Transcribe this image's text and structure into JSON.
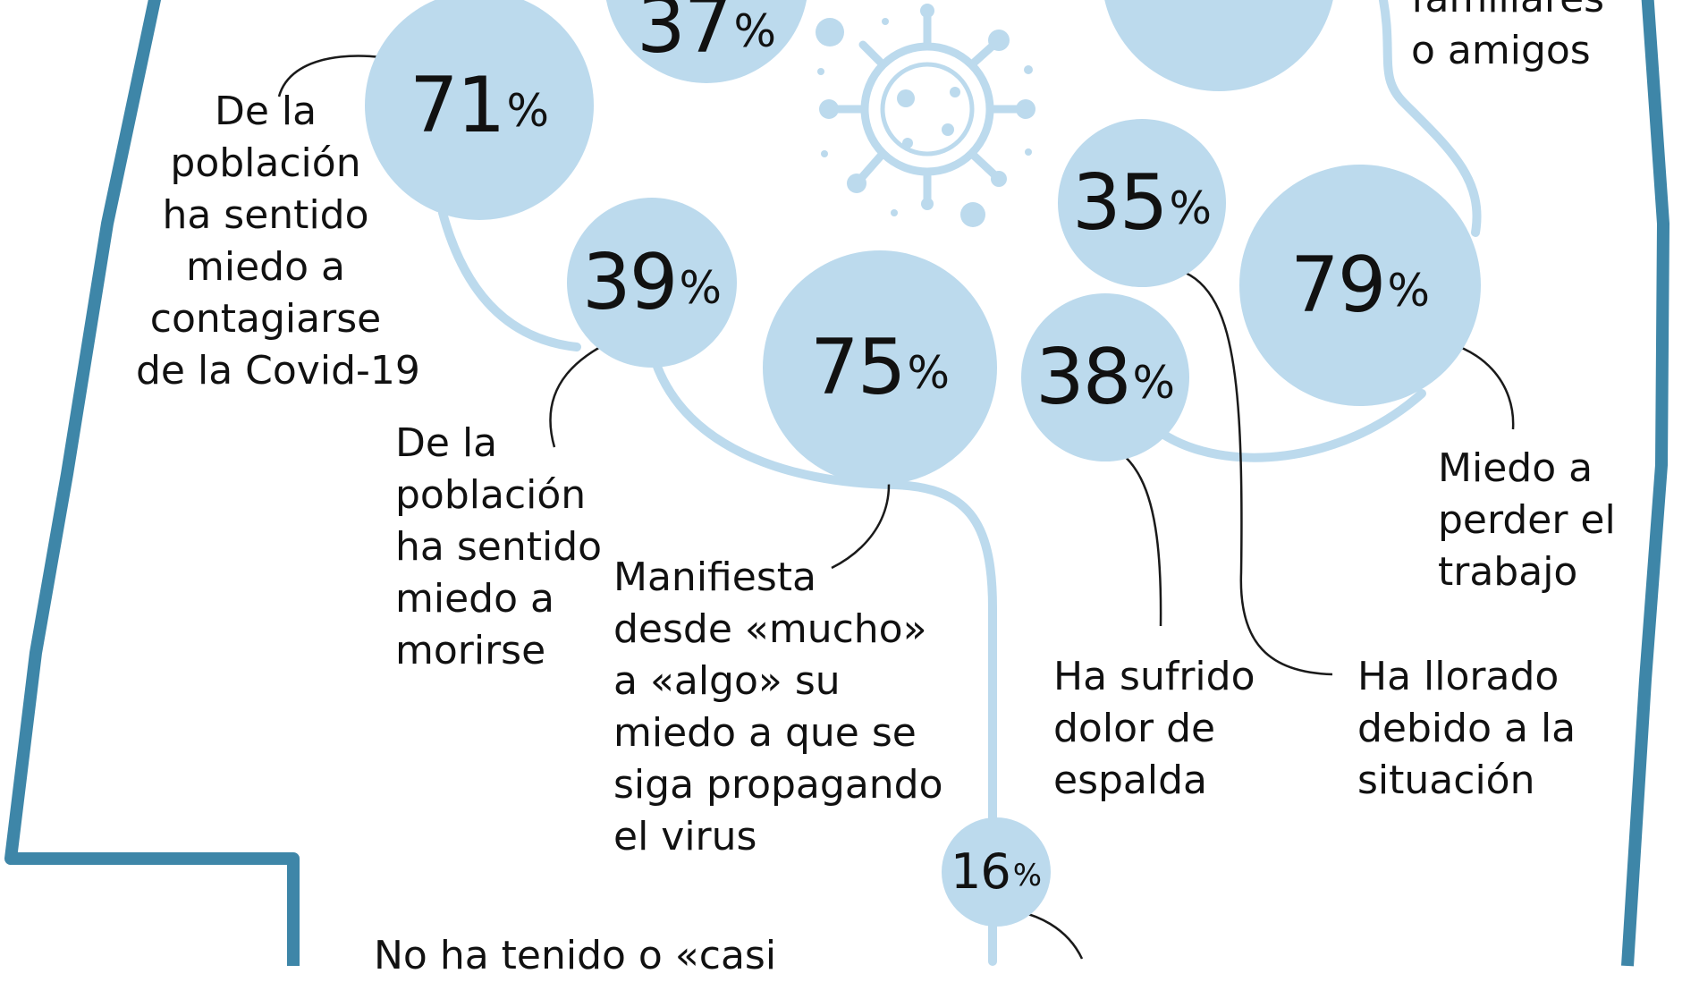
{
  "colors": {
    "outline": "#3e86a8",
    "bubble": "#bcdaed",
    "connector": "#bcdaed",
    "leader": "#1a1a1a",
    "virus": "#bcdaed"
  },
  "icon": "virus-icon",
  "stats": {
    "top_left": {
      "value": "37",
      "unit": "%"
    },
    "top_right": {
      "value": "",
      "unit": ""
    },
    "contagio": {
      "value": "71",
      "unit": "%",
      "label": [
        "De la",
        "población",
        "ha sentido",
        "miedo a",
        "contagiarse",
        "de la Covid-19"
      ]
    },
    "morirse": {
      "value": "39",
      "unit": "%",
      "label": [
        "De la",
        "población",
        "ha sentido",
        "miedo a",
        "morirse"
      ]
    },
    "propagacion": {
      "value": "75",
      "unit": "%",
      "label": [
        "Manifiesta",
        "desde «mucho»",
        "a «algo» su",
        "miedo a que se",
        "siga propagando",
        "el virus"
      ]
    },
    "llorado": {
      "value": "35",
      "unit": "%",
      "label": [
        "Ha llorado",
        "debido a la",
        "situación"
      ]
    },
    "espalda": {
      "value": "38",
      "unit": "%",
      "label": [
        "Ha sufrido",
        "dolor de",
        "espalda"
      ]
    },
    "trabajo": {
      "value": "79",
      "unit": "%",
      "label": [
        "Miedo a",
        "perder el",
        "trabajo"
      ]
    },
    "ninguno": {
      "value": "16",
      "unit": "%",
      "label": [
        "No ha tenido o «casi"
      ]
    },
    "familiares": {
      "label": [
        "familiares",
        "o amigos"
      ]
    }
  }
}
